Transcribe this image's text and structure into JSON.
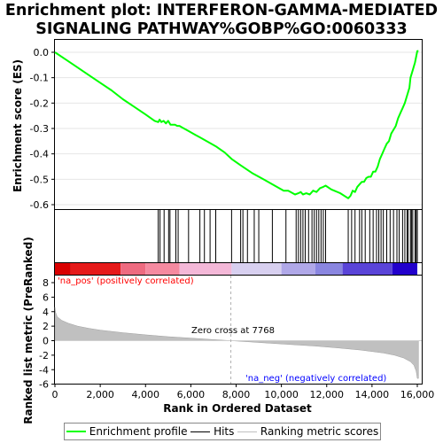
{
  "title_line1": "Enrichment plot: INTERFERON-GAMMA-MEDIATED",
  "title_line2": "SIGNALING PATHWAY%GOBP%GO:0060333",
  "colors": {
    "profile": "#00ff00",
    "hits": "#000000",
    "metric": "#c0c0c0",
    "pos_label": "#ff0000",
    "neg_label": "#0000ff"
  },
  "chart_data": [
    {
      "type": "line",
      "name": "enrichment-profile",
      "ylabel": "Enrichment score (ES)",
      "ylim": [
        -0.61,
        0.02
      ],
      "xlim": [
        0,
        16000
      ],
      "yticks": [
        0.0,
        -0.1,
        -0.2,
        -0.3,
        -0.4,
        -0.5,
        -0.6
      ],
      "ytick_labels": [
        "0.0",
        "-0.1",
        "-0.2",
        "-0.3",
        "-0.4",
        "-0.5",
        "-0.6"
      ],
      "series": [
        {
          "x": [
            0,
            500,
            1000,
            1500,
            2000,
            2500,
            3000,
            3500,
            4000,
            4400,
            4560,
            4620,
            4700,
            4800,
            4900,
            5000,
            5100,
            5300,
            5400,
            5500,
            5600,
            5900,
            6200,
            6400,
            6800,
            7100,
            7500,
            7800,
            8200,
            8700,
            9200,
            9700,
            10100,
            10300,
            10600,
            10750,
            10850,
            10950,
            11100,
            11250,
            11400,
            11550,
            11700,
            11850,
            11950,
            12200,
            12600,
            12950,
            13050,
            13150,
            13250,
            13350,
            13450,
            13550,
            13650,
            13750,
            13850,
            13950,
            14050,
            14150,
            14250,
            14350,
            14450,
            14550,
            14650,
            14750,
            14850,
            14950,
            15050,
            15150,
            15250,
            15350,
            15450,
            15550,
            15650,
            15700,
            15800,
            15900,
            16000,
            16050
          ],
          "values": [
            0.0,
            -0.03,
            -0.06,
            -0.09,
            -0.12,
            -0.15,
            -0.185,
            -0.215,
            -0.245,
            -0.27,
            -0.275,
            -0.265,
            -0.275,
            -0.27,
            -0.28,
            -0.27,
            -0.285,
            -0.285,
            -0.29,
            -0.29,
            -0.295,
            -0.31,
            -0.325,
            -0.335,
            -0.355,
            -0.37,
            -0.395,
            -0.42,
            -0.445,
            -0.475,
            -0.5,
            -0.525,
            -0.545,
            -0.545,
            -0.56,
            -0.555,
            -0.55,
            -0.56,
            -0.555,
            -0.56,
            -0.545,
            -0.55,
            -0.535,
            -0.53,
            -0.525,
            -0.54,
            -0.555,
            -0.575,
            -0.565,
            -0.545,
            -0.55,
            -0.53,
            -0.52,
            -0.51,
            -0.51,
            -0.495,
            -0.49,
            -0.49,
            -0.47,
            -0.47,
            -0.45,
            -0.42,
            -0.4,
            -0.38,
            -0.36,
            -0.35,
            -0.32,
            -0.305,
            -0.29,
            -0.26,
            -0.24,
            -0.22,
            -0.2,
            -0.17,
            -0.14,
            -0.1,
            -0.07,
            -0.04,
            0.005,
            0.005
          ]
        }
      ]
    },
    {
      "type": "scatter",
      "name": "hits",
      "x": [
        4560,
        4640,
        4820,
        5020,
        5080,
        5340,
        5440,
        5900,
        6400,
        6600,
        6850,
        7100,
        7800,
        8200,
        8300,
        8500,
        8800,
        9000,
        9600,
        10200,
        10650,
        10750,
        10850,
        10950,
        11050,
        11200,
        11350,
        11450,
        11550,
        11650,
        11750,
        11850,
        11950,
        12950,
        13100,
        13250,
        13450,
        13550,
        13700,
        13900,
        14050,
        14200,
        14300,
        14400,
        14500,
        14650,
        14800,
        14950,
        15100,
        15200,
        15350,
        15450,
        15550,
        15600,
        15700,
        15750,
        15800,
        15900,
        15950,
        16000
      ]
    },
    {
      "type": "heatmap",
      "name": "ranked-list-colorbar",
      "stops": [
        {
          "x": 0,
          "color": "#d90000"
        },
        {
          "x": 700,
          "color": "#e61a1a"
        },
        {
          "x": 2900,
          "color": "#ee6b80"
        },
        {
          "x": 4000,
          "color": "#f58aa0"
        },
        {
          "x": 5500,
          "color": "#f4b8d8"
        },
        {
          "x": 7800,
          "color": "#d8d0f0"
        },
        {
          "x": 10000,
          "color": "#b0a8e8"
        },
        {
          "x": 11500,
          "color": "#8a86e0"
        },
        {
          "x": 12700,
          "color": "#5a44d8"
        },
        {
          "x": 14900,
          "color": "#2200cc"
        },
        {
          "x": 16000,
          "color": "#1a00c0"
        }
      ]
    },
    {
      "type": "area",
      "name": "ranked-metric",
      "ylabel": "Ranked list metric (PreRanked)",
      "xlabel": "Rank in Ordered Dataset",
      "xlim": [
        0,
        16000
      ],
      "ylim": [
        -6,
        8
      ],
      "xticks": [
        0,
        2000,
        4000,
        6000,
        8000,
        10000,
        12000,
        14000,
        16000
      ],
      "xtick_labels": [
        "0",
        "2,000",
        "4,000",
        "6,000",
        "8,000",
        "10,000",
        "12,000",
        "14,000",
        "16,000"
      ],
      "yticks": [
        8,
        6,
        4,
        2,
        0,
        -2,
        -4,
        -6
      ],
      "ytick_labels": [
        "8",
        "6",
        "4",
        "2",
        "0",
        "-2",
        "-4",
        "-6"
      ],
      "x": [
        0,
        30,
        100,
        300,
        600,
        1000,
        1500,
        2000,
        3000,
        4000,
        5000,
        6000,
        7000,
        7768,
        8500,
        9500,
        10500,
        11500,
        12500,
        13500,
        14500,
        15000,
        15400,
        15700,
        15850,
        15950,
        16000,
        16050
      ],
      "values": [
        4.6,
        3.9,
        3.3,
        2.8,
        2.4,
        2.0,
        1.7,
        1.45,
        1.1,
        0.8,
        0.55,
        0.35,
        0.15,
        0.0,
        -0.15,
        -0.35,
        -0.55,
        -0.75,
        -1.0,
        -1.3,
        -1.7,
        -2.0,
        -2.4,
        -2.9,
        -3.4,
        -4.2,
        -5.2,
        -5.2
      ],
      "zero_cross_label": "Zero cross at 7768",
      "pos_label": "'na_pos' (positively correlated)",
      "neg_label": "'na_neg' (negatively correlated)"
    }
  ],
  "legend": {
    "profile": "Enrichment profile",
    "hits": "Hits",
    "metric": "Ranking metric scores"
  }
}
